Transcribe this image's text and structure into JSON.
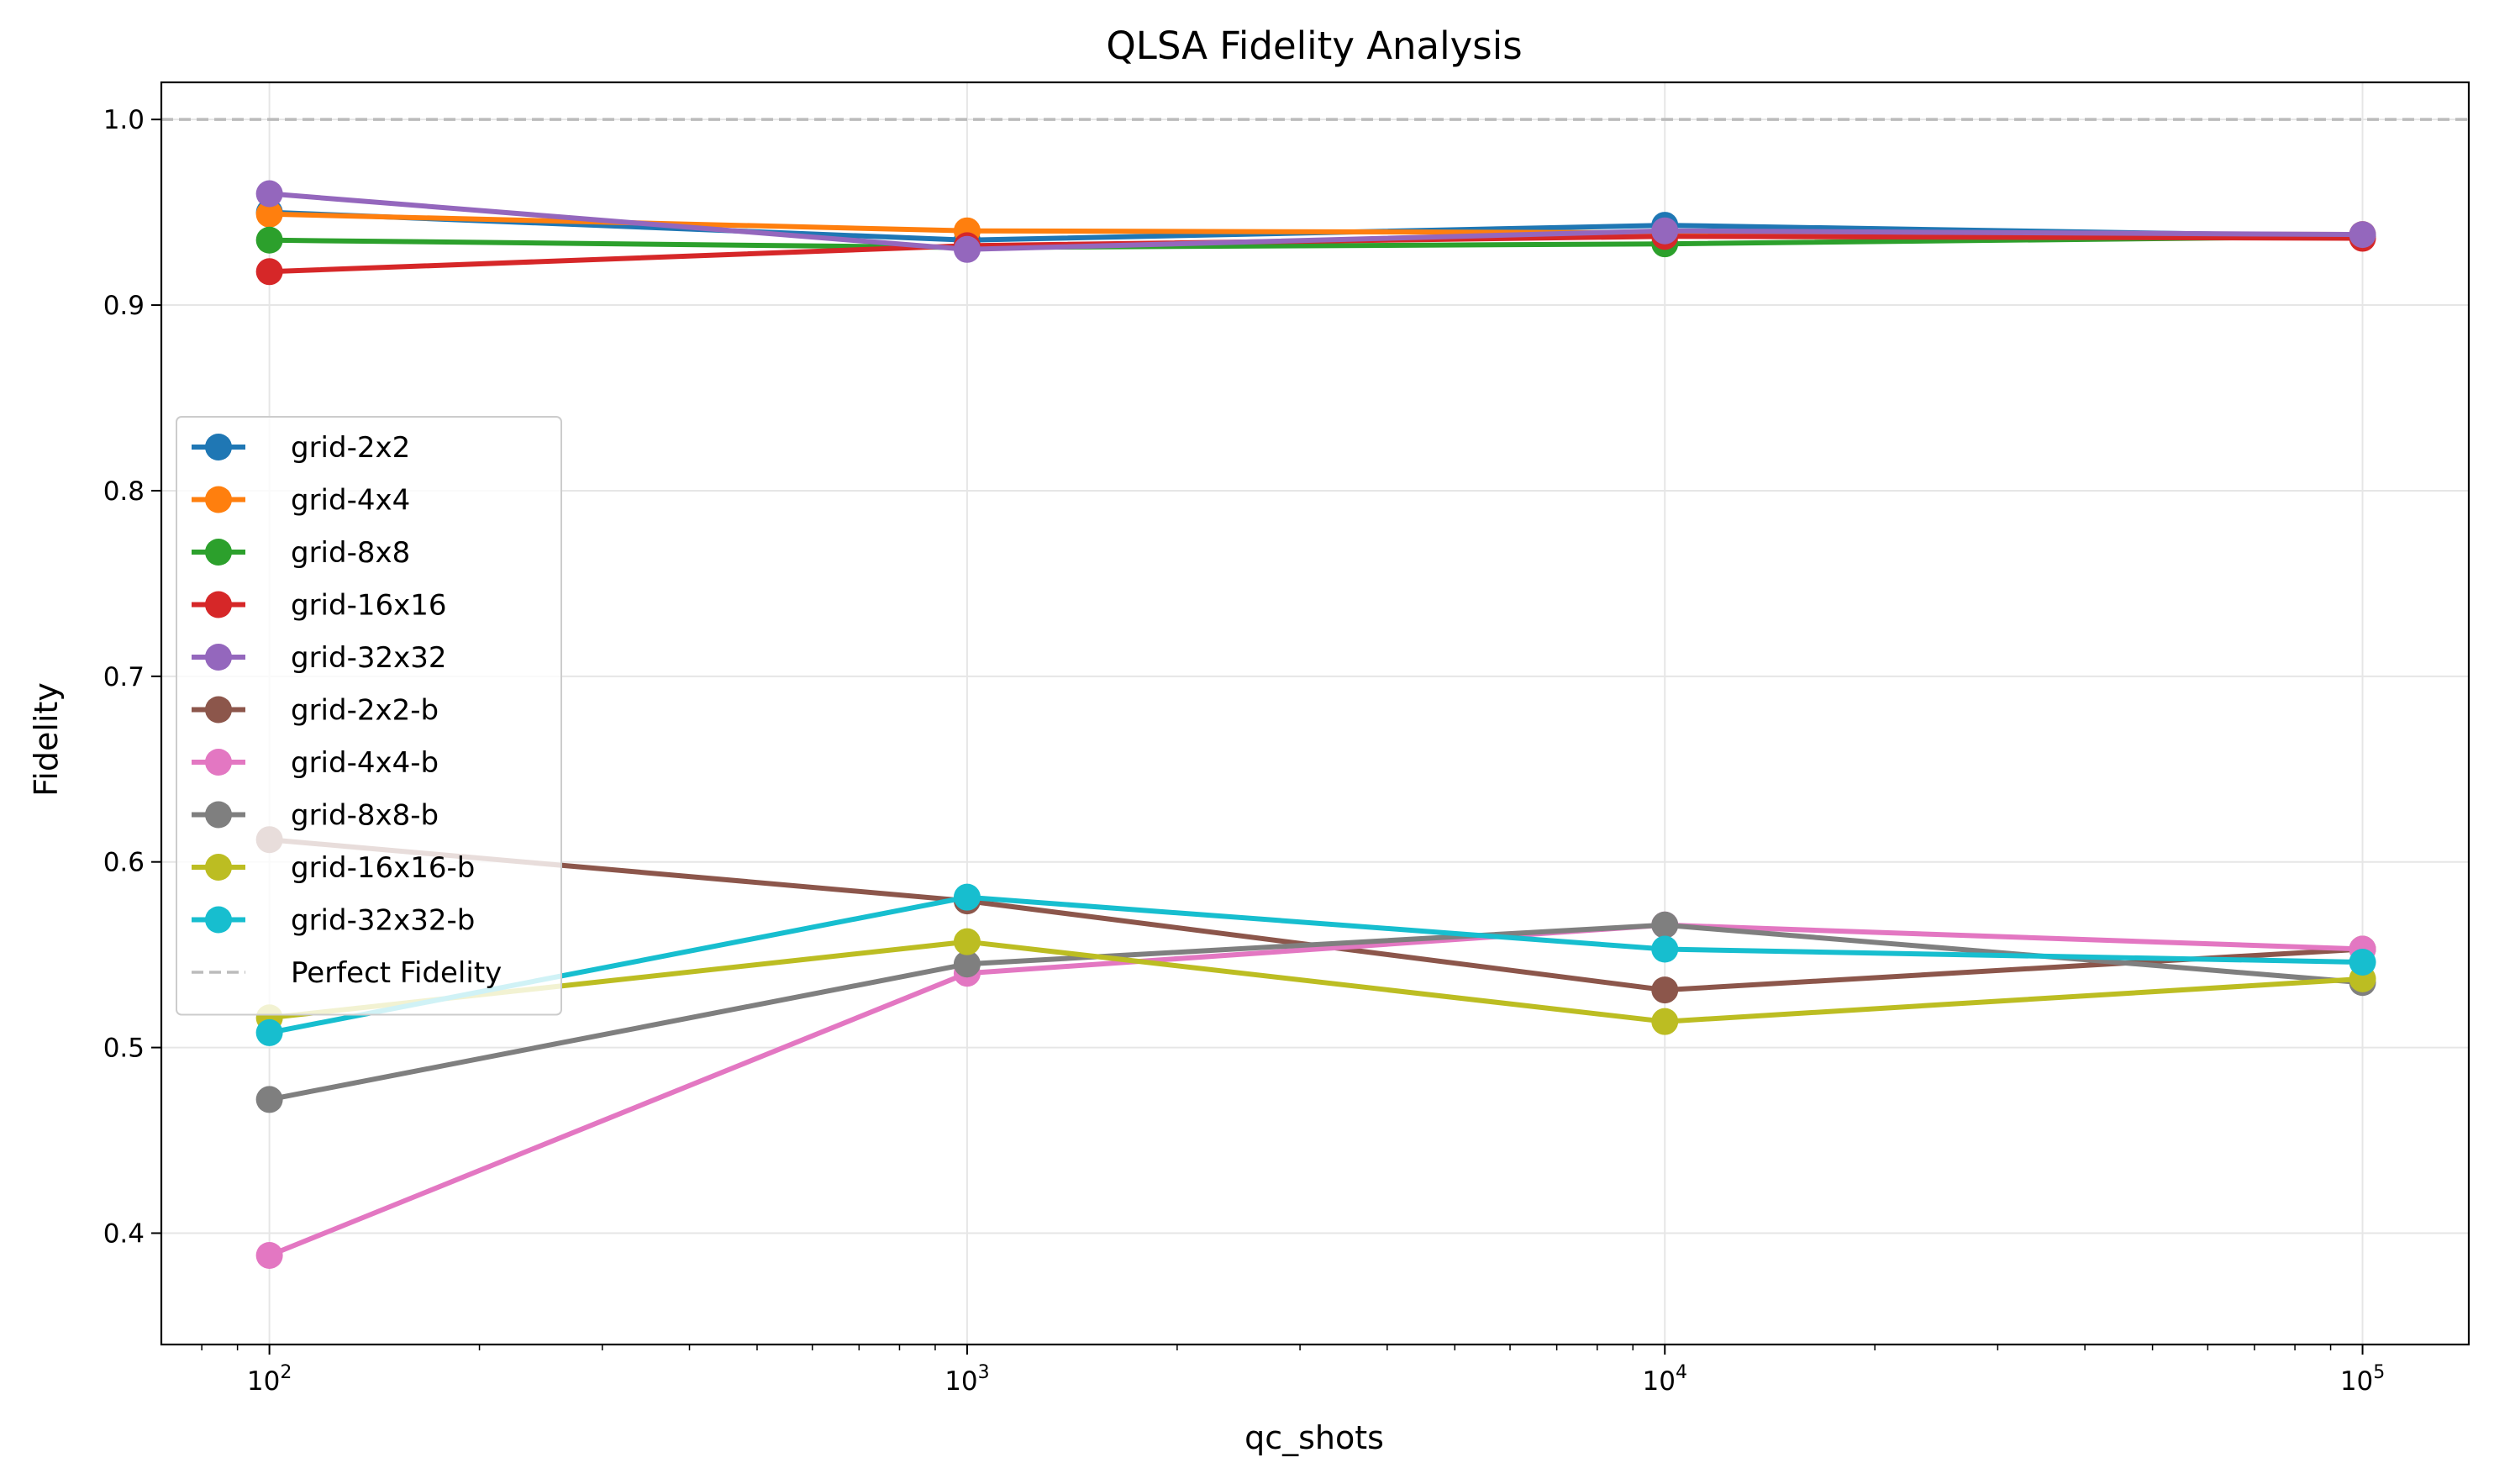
{
  "chart_data": {
    "type": "line",
    "title": "QLSA Fidelity Analysis",
    "xlabel": "qc_shots",
    "ylabel": "Fidelity",
    "xscale": "log",
    "x": [
      100,
      1000,
      10000,
      100000
    ],
    "xtick_labels": [
      {
        "base": "10",
        "exp": "2"
      },
      {
        "base": "10",
        "exp": "3"
      },
      {
        "base": "10",
        "exp": "4"
      },
      {
        "base": "10",
        "exp": "5"
      }
    ],
    "ylim": [
      0.34,
      1.02
    ],
    "yticks": [
      "0.4",
      "0.5",
      "0.6",
      "0.7",
      "0.8",
      "0.9",
      "1.0"
    ],
    "grid": true,
    "legend_position": "center-left",
    "series": [
      {
        "name": "grid-2x2",
        "color": "#1f77b4",
        "values": [
          0.95,
          0.935,
          0.943,
          0.937
        ]
      },
      {
        "name": "grid-4x4",
        "color": "#ff7f0e",
        "values": [
          0.949,
          0.94,
          0.939,
          0.938
        ]
      },
      {
        "name": "grid-8x8",
        "color": "#2ca02c",
        "values": [
          0.935,
          0.931,
          0.933,
          0.937
        ]
      },
      {
        "name": "grid-16x16",
        "color": "#d62728",
        "values": [
          0.918,
          0.932,
          0.937,
          0.936
        ]
      },
      {
        "name": "grid-32x32",
        "color": "#9467bd",
        "values": [
          0.96,
          0.93,
          0.94,
          0.938
        ]
      },
      {
        "name": "grid-2x2-b",
        "color": "#8c564b",
        "values": [
          0.612,
          0.579,
          0.531,
          0.553
        ]
      },
      {
        "name": "grid-4x4-b",
        "color": "#e377c2",
        "values": [
          0.388,
          0.54,
          0.566,
          0.553
        ]
      },
      {
        "name": "grid-8x8-b",
        "color": "#7f7f7f",
        "values": [
          0.472,
          0.545,
          0.566,
          0.535
        ]
      },
      {
        "name": "grid-16x16-b",
        "color": "#bcbd22",
        "values": [
          0.516,
          0.557,
          0.514,
          0.537
        ]
      },
      {
        "name": "grid-32x32-b",
        "color": "#17becf",
        "values": [
          0.508,
          0.581,
          0.553,
          0.546
        ]
      }
    ],
    "reference_line": {
      "name": "Perfect Fidelity",
      "y": 1.0,
      "color": "#bbbbbb",
      "style": "dashed"
    }
  }
}
